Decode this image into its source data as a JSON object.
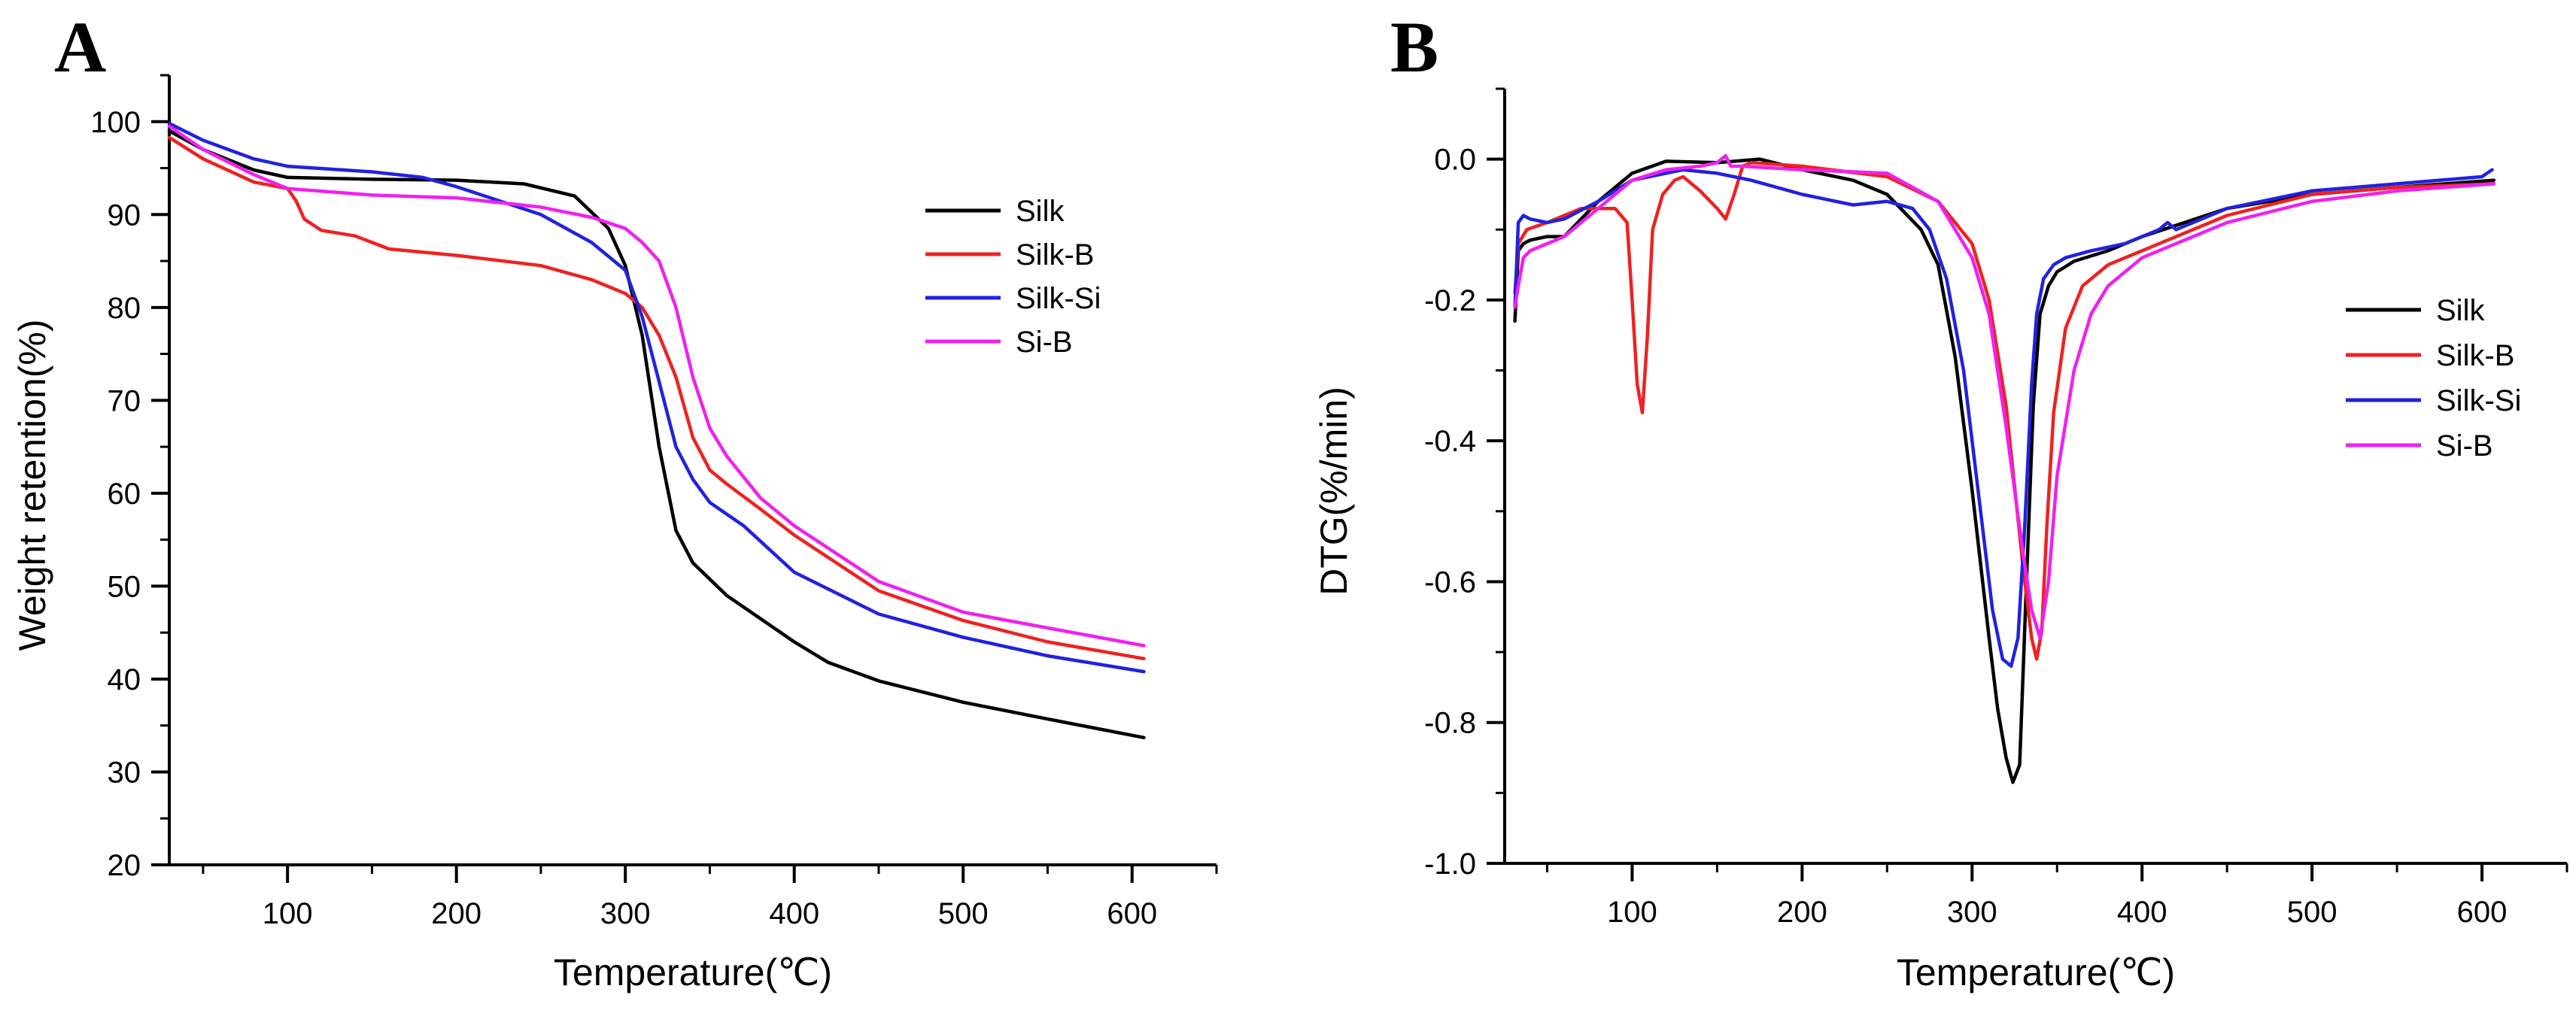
{
  "chart_data": [
    {
      "panel": "A",
      "type": "line",
      "xlabel": "Temperature(℃)",
      "ylabel": "Weight retention(%)",
      "xlim": [
        30,
        650
      ],
      "ylim": [
        20,
        105
      ],
      "xticks": [
        100,
        200,
        300,
        400,
        500,
        600
      ],
      "yticks": [
        20,
        30,
        40,
        50,
        60,
        70,
        80,
        90,
        100
      ],
      "xtick_labels": [
        "100",
        "200",
        "300",
        "400",
        "500",
        "600"
      ],
      "ytick_labels": [
        "20",
        "30",
        "40",
        "50",
        "60",
        "70",
        "80",
        "90",
        "100"
      ],
      "legend": "upper-right",
      "series": [
        {
          "name": "Silk",
          "color": "#000000",
          "x": [
            30,
            50,
            80,
            100,
            150,
            200,
            240,
            270,
            290,
            300,
            310,
            320,
            330,
            340,
            360,
            380,
            400,
            420,
            450,
            500,
            550,
            607
          ],
          "y": [
            99.0,
            97.0,
            94.8,
            94.0,
            93.8,
            93.7,
            93.3,
            92.0,
            88.5,
            84.5,
            77.0,
            65.0,
            56.0,
            52.5,
            49.0,
            46.5,
            44.0,
            41.8,
            39.8,
            37.5,
            35.7,
            33.7
          ]
        },
        {
          "name": "Silk-B",
          "color": "#ee2222",
          "x": [
            30,
            50,
            80,
            100,
            105,
            110,
            120,
            140,
            160,
            200,
            250,
            280,
            300,
            310,
            320,
            330,
            340,
            350,
            360,
            380,
            400,
            450,
            500,
            550,
            607
          ],
          "y": [
            98.3,
            96.0,
            93.5,
            92.8,
            91.5,
            89.5,
            88.3,
            87.7,
            86.3,
            85.6,
            84.5,
            83.0,
            81.5,
            80.0,
            77.0,
            72.5,
            66.0,
            62.5,
            61.0,
            58.3,
            55.5,
            49.5,
            46.3,
            44.0,
            42.2
          ]
        },
        {
          "name": "Silk-Si",
          "color": "#2222dd",
          "x": [
            30,
            50,
            80,
            100,
            150,
            180,
            200,
            250,
            280,
            300,
            310,
            320,
            330,
            340,
            350,
            370,
            400,
            450,
            500,
            550,
            607
          ],
          "y": [
            99.8,
            98.0,
            96.0,
            95.2,
            94.6,
            94.0,
            93.0,
            90.0,
            87.0,
            84.0,
            79.0,
            72.0,
            65.0,
            61.5,
            59.0,
            56.5,
            51.5,
            47.0,
            44.5,
            42.5,
            40.8
          ]
        },
        {
          "name": "Si-B",
          "color": "#ee22ee",
          "x": [
            30,
            50,
            80,
            100,
            150,
            200,
            250,
            280,
            300,
            310,
            320,
            330,
            340,
            350,
            360,
            380,
            400,
            450,
            500,
            550,
            607
          ],
          "y": [
            99.5,
            97.0,
            94.3,
            92.8,
            92.1,
            91.8,
            90.8,
            89.7,
            88.5,
            87.0,
            85.0,
            80.0,
            72.5,
            67.0,
            64.0,
            59.5,
            56.5,
            50.5,
            47.2,
            45.5,
            43.6
          ]
        }
      ]
    },
    {
      "panel": "B",
      "type": "line",
      "xlabel": "Temperature(℃)",
      "ylabel": "DTG(%/min)",
      "xlim": [
        25,
        650
      ],
      "ylim": [
        -1.0,
        0.1
      ],
      "xticks": [
        100,
        200,
        300,
        400,
        500,
        600
      ],
      "yticks": [
        -1.0,
        -0.8,
        -0.6,
        -0.4,
        -0.2,
        0.0
      ],
      "xtick_labels": [
        "100",
        "200",
        "300",
        "400",
        "500",
        "600"
      ],
      "ytick_labels": [
        "-1.0",
        "-0.8",
        "-0.6",
        "-0.4",
        "-0.2",
        "0.0"
      ],
      "legend": "right",
      "series": [
        {
          "name": "Silk",
          "color": "#000000",
          "x": [
            31,
            33,
            36,
            40,
            50,
            60,
            80,
            100,
            120,
            150,
            175,
            200,
            230,
            250,
            270,
            280,
            290,
            300,
            310,
            315,
            320,
            324,
            328,
            332,
            336,
            340,
            345,
            350,
            360,
            380,
            400,
            450,
            500,
            550,
            607
          ],
          "y": [
            -0.23,
            -0.13,
            -0.12,
            -0.115,
            -0.11,
            -0.11,
            -0.06,
            -0.02,
            -0.003,
            -0.005,
            0.0,
            -0.015,
            -0.03,
            -0.05,
            -0.1,
            -0.15,
            -0.28,
            -0.47,
            -0.68,
            -0.78,
            -0.85,
            -0.885,
            -0.86,
            -0.6,
            -0.35,
            -0.22,
            -0.18,
            -0.16,
            -0.145,
            -0.13,
            -0.11,
            -0.07,
            -0.05,
            -0.04,
            -0.03
          ]
        },
        {
          "name": "Silk-B",
          "color": "#ee2222",
          "x": [
            31,
            33,
            38,
            50,
            70,
            90,
            97,
            100,
            103,
            106,
            109,
            112,
            118,
            125,
            130,
            140,
            150,
            155,
            160,
            165,
            170,
            200,
            250,
            280,
            300,
            310,
            320,
            330,
            335,
            338,
            341,
            344,
            348,
            355,
            365,
            380,
            400,
            450,
            500,
            550,
            607
          ],
          "y": [
            -0.19,
            -0.12,
            -0.1,
            -0.09,
            -0.07,
            -0.07,
            -0.09,
            -0.2,
            -0.32,
            -0.36,
            -0.25,
            -0.1,
            -0.05,
            -0.03,
            -0.025,
            -0.045,
            -0.07,
            -0.085,
            -0.05,
            -0.01,
            -0.005,
            -0.01,
            -0.025,
            -0.06,
            -0.12,
            -0.2,
            -0.35,
            -0.58,
            -0.68,
            -0.71,
            -0.67,
            -0.52,
            -0.36,
            -0.24,
            -0.18,
            -0.15,
            -0.13,
            -0.08,
            -0.05,
            -0.04,
            -0.035
          ]
        },
        {
          "name": "Silk-Si",
          "color": "#2222dd",
          "x": [
            31,
            33,
            36,
            40,
            50,
            60,
            80,
            100,
            130,
            150,
            170,
            200,
            230,
            250,
            265,
            275,
            285,
            295,
            305,
            312,
            318,
            323,
            327,
            331,
            335,
            338,
            342,
            348,
            355,
            370,
            390,
            410,
            415,
            420,
            450,
            500,
            550,
            600,
            606
          ],
          "y": [
            -0.21,
            -0.09,
            -0.08,
            -0.085,
            -0.09,
            -0.085,
            -0.06,
            -0.03,
            -0.015,
            -0.02,
            -0.03,
            -0.05,
            -0.065,
            -0.06,
            -0.07,
            -0.1,
            -0.17,
            -0.3,
            -0.5,
            -0.64,
            -0.71,
            -0.72,
            -0.68,
            -0.52,
            -0.32,
            -0.22,
            -0.17,
            -0.15,
            -0.14,
            -0.13,
            -0.12,
            -0.1,
            -0.09,
            -0.1,
            -0.07,
            -0.045,
            -0.035,
            -0.025,
            -0.015
          ]
        },
        {
          "name": "Si-B",
          "color": "#ee22ee",
          "x": [
            31,
            33,
            36,
            40,
            50,
            60,
            80,
            100,
            120,
            140,
            150,
            155,
            158,
            165,
            200,
            250,
            280,
            300,
            310,
            320,
            330,
            335,
            340,
            345,
            350,
            360,
            370,
            380,
            400,
            450,
            500,
            550,
            607
          ],
          "y": [
            -0.21,
            -0.18,
            -0.14,
            -0.13,
            -0.12,
            -0.11,
            -0.07,
            -0.03,
            -0.015,
            -0.01,
            -0.005,
            0.005,
            -0.01,
            -0.01,
            -0.015,
            -0.02,
            -0.06,
            -0.14,
            -0.22,
            -0.38,
            -0.56,
            -0.64,
            -0.68,
            -0.6,
            -0.45,
            -0.3,
            -0.22,
            -0.18,
            -0.14,
            -0.09,
            -0.06,
            -0.045,
            -0.035
          ]
        }
      ]
    }
  ]
}
